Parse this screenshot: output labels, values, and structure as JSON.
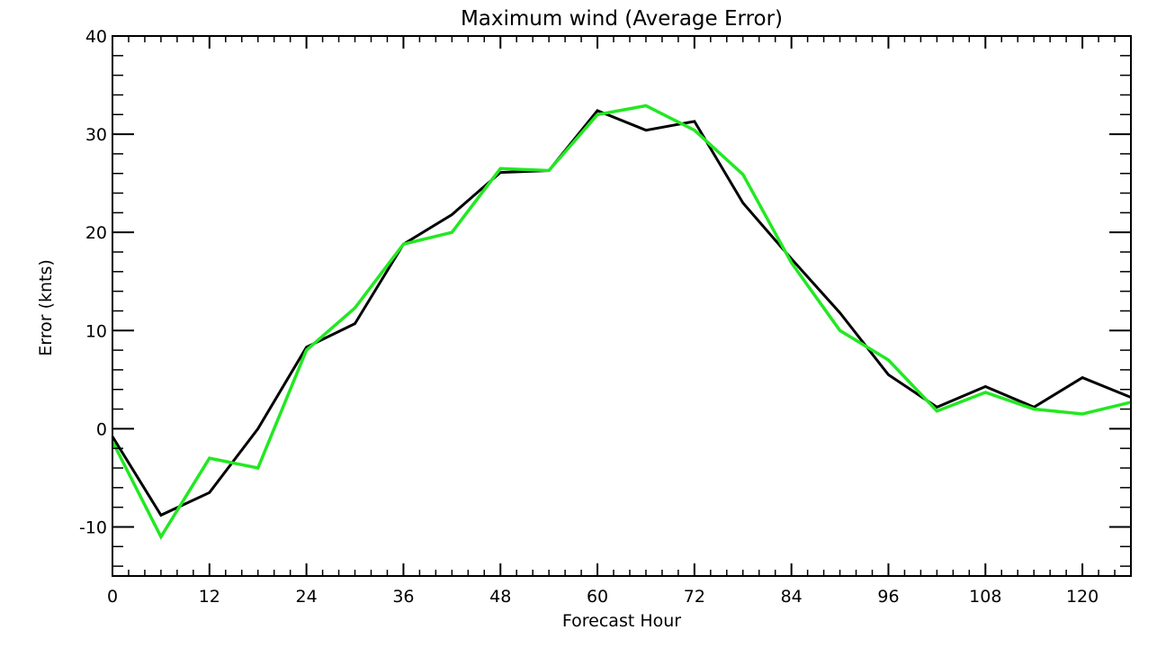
{
  "chart_data": {
    "type": "line",
    "title": "Maximum wind (Average Error)",
    "xlabel": "Forecast Hour",
    "ylabel": "Error (knts)",
    "xlim": [
      0,
      126
    ],
    "ylim": [
      -15,
      40
    ],
    "x_ticks": [
      0,
      12,
      24,
      36,
      48,
      60,
      72,
      84,
      96,
      108,
      120
    ],
    "y_ticks": [
      -10,
      0,
      10,
      20,
      30,
      40
    ],
    "grid": false,
    "series": [
      {
        "color": "#000000",
        "x": [
          0,
          6,
          12,
          18,
          24,
          30,
          36,
          42,
          48,
          54,
          60,
          66,
          72,
          78,
          84,
          90,
          96,
          102,
          108,
          114,
          120,
          126
        ],
        "y": [
          -0.8,
          -8.8,
          -6.5,
          0.0,
          8.3,
          10.7,
          18.8,
          21.8,
          26.1,
          26.3,
          32.4,
          30.4,
          31.3,
          23.0,
          17.3,
          11.8,
          5.5,
          2.2,
          4.3,
          2.2,
          5.2,
          3.2
        ]
      },
      {
        "color": "#22e822",
        "x": [
          0,
          6,
          12,
          18,
          24,
          30,
          36,
          42,
          48,
          54,
          60,
          66,
          72,
          78,
          84,
          90,
          96,
          102,
          108,
          114,
          120,
          126
        ],
        "y": [
          -1.3,
          -11.0,
          -3.0,
          -4.0,
          8.0,
          12.3,
          18.8,
          20.0,
          26.5,
          26.3,
          32.0,
          32.9,
          30.4,
          25.9,
          16.9,
          10.0,
          7.0,
          1.8,
          3.7,
          2.0,
          1.5,
          2.7
        ]
      }
    ]
  }
}
